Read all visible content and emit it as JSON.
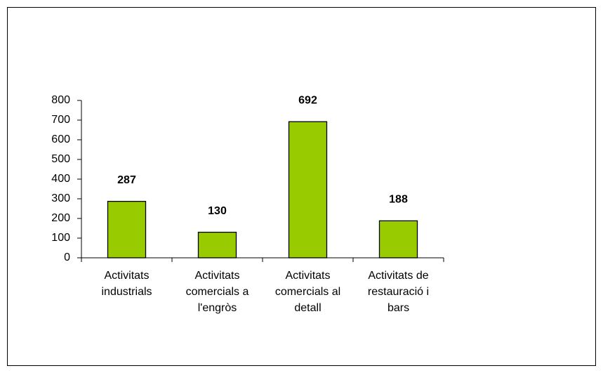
{
  "chart_data": {
    "type": "bar",
    "categories": [
      "Activitats industrials",
      "Activitats comercials a l'engròs",
      "Activitats comercials al detall",
      "Activitats de restauració i bars"
    ],
    "values": [
      287,
      130,
      692,
      188
    ],
    "color": "#99cc00",
    "ylim": [
      0,
      800
    ],
    "yticks": [
      0,
      100,
      200,
      300,
      400,
      500,
      600,
      700,
      800
    ],
    "grid": false
  }
}
